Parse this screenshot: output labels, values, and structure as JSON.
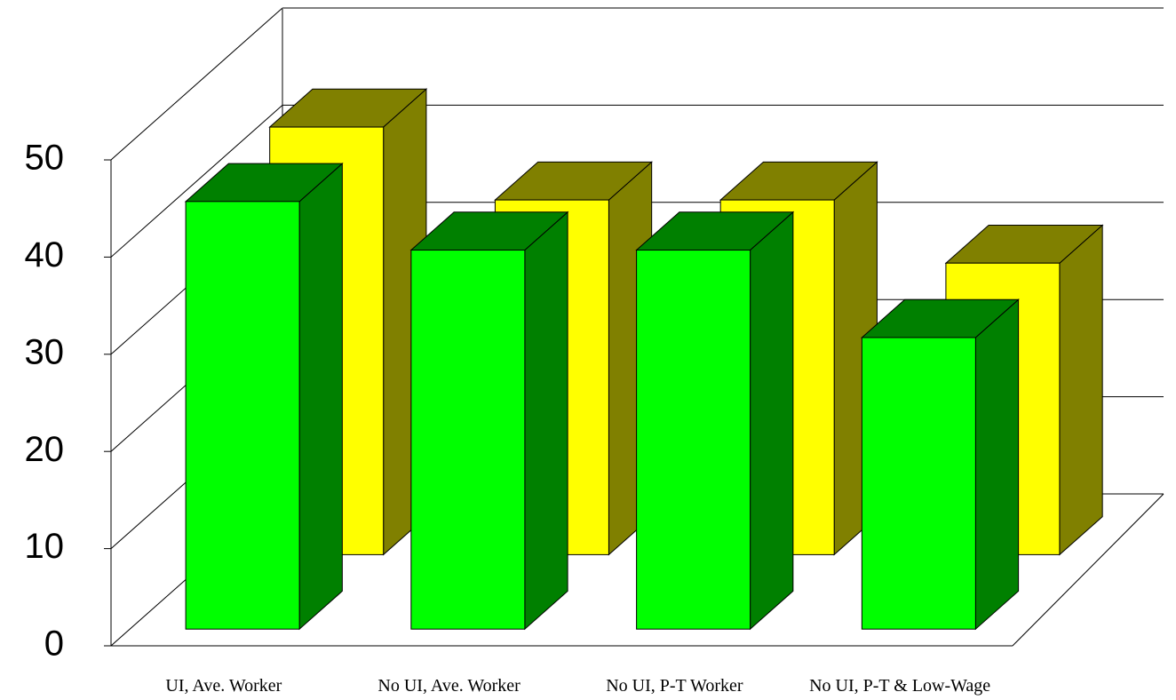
{
  "chart_data": {
    "type": "bar3d",
    "categories": [
      "UI, Ave. Worker",
      "No UI, Ave. Worker",
      "No UI, P-T Worker",
      "No UI, P-T & Low-Wage"
    ],
    "series": [
      {
        "color": "#ffff00",
        "side_color": "#808000",
        "values": [
          44,
          36.5,
          36.5,
          30
        ]
      },
      {
        "color": "#00ff00",
        "side_color": "#008000",
        "values": [
          44,
          39,
          39,
          30
        ]
      }
    ],
    "ylim": [
      0,
      50
    ],
    "yticks": [
      0,
      10,
      20,
      30,
      40,
      50
    ],
    "grid": true
  }
}
